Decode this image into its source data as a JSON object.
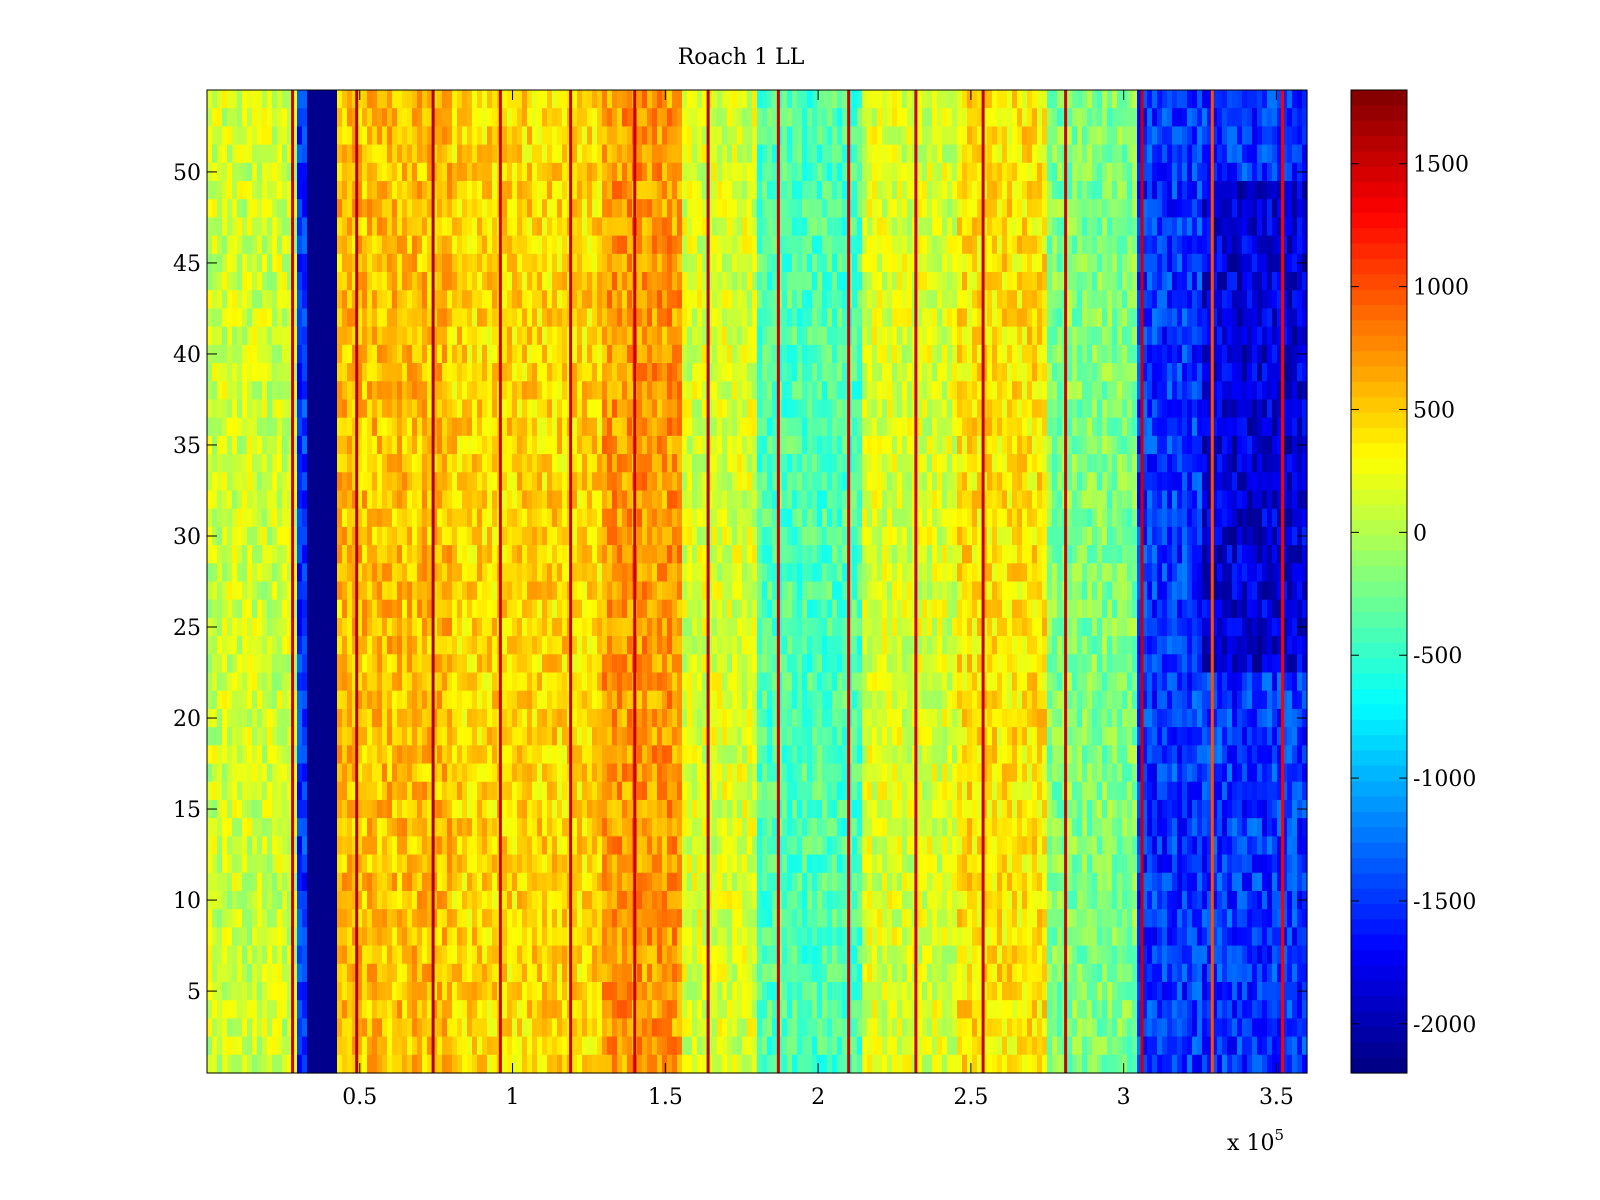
{
  "chart_data": {
    "type": "heatmap",
    "title": "Roach 1 LL",
    "xlabel": "",
    "ylabel": "",
    "x_exponent_label": "x 10",
    "x_exponent_power": "5",
    "xlim": [
      0,
      3.6
    ],
    "ylim": [
      0.5,
      54.5
    ],
    "x_ticks": [
      0.5,
      1,
      1.5,
      2,
      2.5,
      3,
      3.5
    ],
    "x_tick_labels": [
      "0.5",
      "1",
      "1.5",
      "2",
      "2.5",
      "3",
      "3.5"
    ],
    "y_ticks": [
      5,
      10,
      15,
      20,
      25,
      30,
      35,
      40,
      45,
      50
    ],
    "y_tick_labels": [
      "5",
      "10",
      "15",
      "20",
      "25",
      "30",
      "35",
      "40",
      "45",
      "50"
    ],
    "rows": 54,
    "clim": [
      -2200,
      1800
    ],
    "colormap": "jet",
    "colorbar_ticks": [
      1500,
      1000,
      500,
      0,
      -500,
      -1000,
      -1500,
      -2000
    ],
    "colorbar_tick_labels": [
      "1500",
      "1000",
      "500",
      "0",
      "-500",
      "-1000",
      "-1500",
      "-2000"
    ],
    "column_profile": {
      "description": "approximate mean value per x-segment (x in units of 10^5)",
      "segments": [
        {
          "x_start": 0.0,
          "x_end": 0.3,
          "value": 100
        },
        {
          "x_start": 0.32,
          "x_end": 0.42,
          "value": -2150
        },
        {
          "x_start": 0.42,
          "x_end": 0.8,
          "value": 550
        },
        {
          "x_start": 0.8,
          "x_end": 1.3,
          "value": 450
        },
        {
          "x_start": 1.3,
          "x_end": 1.55,
          "value": 700
        },
        {
          "x_start": 1.55,
          "x_end": 1.8,
          "value": 150
        },
        {
          "x_start": 1.8,
          "x_end": 2.15,
          "value": -400
        },
        {
          "x_start": 2.15,
          "x_end": 2.45,
          "value": 150
        },
        {
          "x_start": 2.45,
          "x_end": 2.75,
          "value": 400
        },
        {
          "x_start": 2.75,
          "x_end": 3.05,
          "value": -200
        },
        {
          "x_start": 3.05,
          "x_end": 3.6,
          "value": -1500
        }
      ]
    },
    "vertical_stripes": {
      "description": "narrow high-value lines visible in the map",
      "x": [
        0.28,
        0.49,
        0.74,
        0.96,
        1.19,
        1.4,
        1.64,
        1.87,
        2.1,
        2.32,
        2.54,
        2.81,
        3.06,
        3.29,
        3.52
      ],
      "values": [
        1500,
        1600,
        1600,
        1500,
        1500,
        1500,
        1600,
        1500,
        1500,
        1500,
        1500,
        1500,
        1500,
        1000,
        1300
      ]
    }
  }
}
